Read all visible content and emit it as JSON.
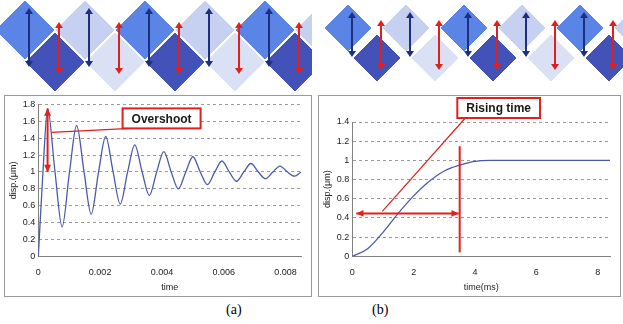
{
  "panel_labels": [
    "(a)",
    "(b)"
  ],
  "chart_data": [
    {
      "type": "line",
      "annotations": [
        "Overshoot"
      ],
      "xlabel": "time",
      "ylabel": "disp.(μm)",
      "x": [
        0,
        0.00015,
        0.0003,
        0.00054,
        0.00077,
        0.00101,
        0.00124,
        0.00148,
        0.00171,
        0.00195,
        0.00218,
        0.00242,
        0.00265,
        0.00289,
        0.00312,
        0.00336,
        0.00359,
        0.00383,
        0.00406,
        0.0043,
        0.00453,
        0.00477,
        0.005,
        0.00524,
        0.00547,
        0.00571,
        0.00594,
        0.00618,
        0.00641,
        0.00665,
        0.00688,
        0.00712,
        0.00735,
        0.00759,
        0.00782,
        0.00806,
        0.00829,
        0.0085
      ],
      "values": [
        0,
        1.0,
        1.75,
        1.0,
        0.35,
        1.0,
        1.55,
        1.0,
        0.5,
        1.0,
        1.42,
        1.0,
        0.62,
        1.0,
        1.32,
        1.0,
        0.72,
        1.0,
        1.24,
        1.0,
        0.8,
        1.0,
        1.18,
        1.0,
        0.85,
        1.0,
        1.13,
        1.0,
        0.89,
        1.0,
        1.1,
        1.0,
        0.92,
        1.0,
        1.07,
        1.0,
        0.95,
        1.0
      ],
      "color": "#4a5aa8",
      "xlim": [
        0,
        0.0085
      ],
      "xticks": [
        0,
        0.002,
        0.004,
        0.006,
        0.008
      ],
      "ylim": [
        0,
        1.8
      ],
      "yticks": [
        0,
        0.2,
        0.4,
        0.6,
        0.8,
        1,
        1.2,
        1.4,
        1.6,
        1.8
      ],
      "grid": true
    },
    {
      "type": "line",
      "annotations": [
        "Rising time"
      ],
      "xlabel": "time(ms)",
      "ylabel": "disp.(μm)",
      "x": [
        0,
        0.5,
        1,
        1.5,
        2,
        2.5,
        3,
        3.5,
        4,
        4.5,
        5,
        6,
        7,
        8,
        8.4
      ],
      "values": [
        0,
        0.08,
        0.25,
        0.45,
        0.63,
        0.78,
        0.89,
        0.95,
        0.99,
        1.0,
        1.0,
        1.0,
        1.0,
        1.0,
        1.0
      ],
      "color": "#4a5aa8",
      "xlim": [
        0,
        8.4
      ],
      "xticks": [
        0,
        2,
        4,
        6,
        8
      ],
      "ylim": [
        0,
        1.4
      ],
      "yticks": [
        0,
        0.2,
        0.4,
        0.6,
        0.8,
        1,
        1.2,
        1.4
      ],
      "grid": true
    }
  ]
}
